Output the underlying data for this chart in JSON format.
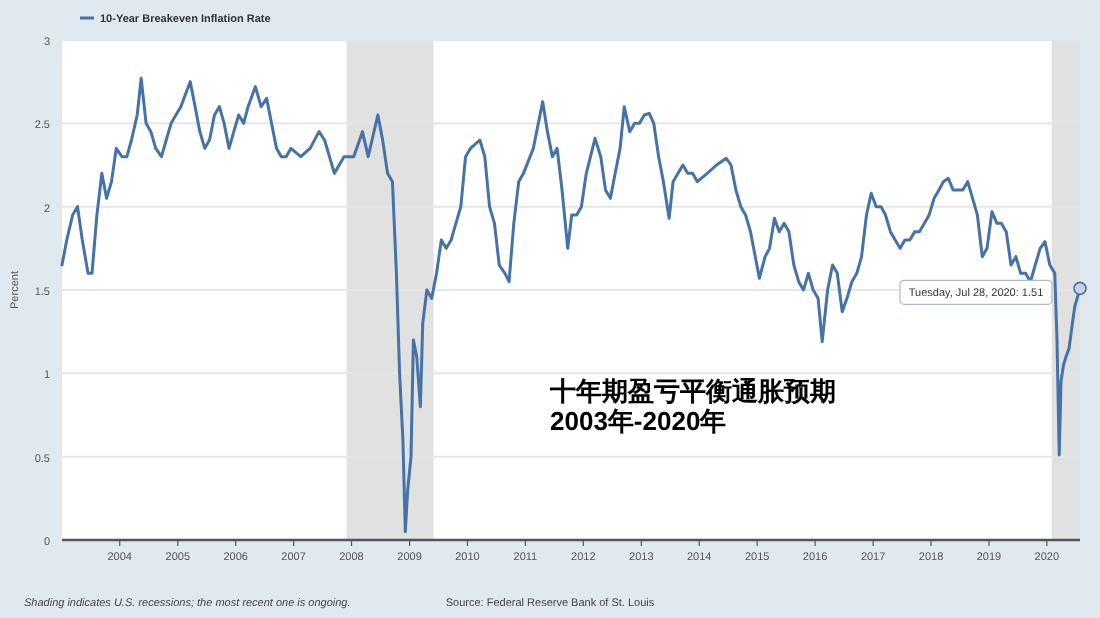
{
  "chart_data": {
    "type": "line",
    "title": "十年期盈亏平衡通胀预期\n2003年-2020年",
    "ylabel": "Percent",
    "legend": "top left",
    "grid": "y",
    "xlim": [
      "2003-01-02",
      "2020-07-28"
    ],
    "ylim": [
      0,
      3
    ],
    "yticks": [
      0,
      0.5,
      1,
      1.5,
      2,
      2.5,
      3
    ],
    "xticks": [
      {
        "value": "2004",
        "label": "2004"
      },
      {
        "value": "2005",
        "label": "2005"
      },
      {
        "value": "2006",
        "label": "2006"
      },
      {
        "value": "2007",
        "label": "2007"
      },
      {
        "value": "2008",
        "label": "2008"
      },
      {
        "value": "2009",
        "label": "2009"
      },
      {
        "value": "2010",
        "label": "2010"
      },
      {
        "value": "2011",
        "label": "2011"
      },
      {
        "value": "2012",
        "label": "2012"
      },
      {
        "value": "2013",
        "label": "2013"
      },
      {
        "value": "2014",
        "label": "2014"
      },
      {
        "value": "2015",
        "label": "2015"
      },
      {
        "value": "2016",
        "label": "2016"
      },
      {
        "value": "2017",
        "label": "2017"
      },
      {
        "value": "2018",
        "label": "2018"
      },
      {
        "value": "2019",
        "label": "2019"
      },
      {
        "value": "2020",
        "label": "2020"
      }
    ],
    "bands": [
      {
        "axis": "x",
        "from": "2007-12-01",
        "to": "2009-06-01",
        "color": "#e1e1e1"
      },
      {
        "axis": "x",
        "from": "2020-02-01",
        "to": "2020-07-28",
        "color": "#e1e1e1"
      }
    ],
    "annotations": [
      "Shading indicates U.S. recessions; the most recent one is ongoing.",
      "Source: Federal Reserve Bank of St. Louis",
      "Tuesday, Jul 28, 2020: 1.51"
    ],
    "series": [
      {
        "name": "10-Year Breakeven Inflation Rate",
        "color": "#4572a7",
        "x": [
          "2003-01-02",
          "2003-02-01",
          "2003-03-10",
          "2003-04-10",
          "2003-05-10",
          "2003-06-15",
          "2003-07-10",
          "2003-08-10",
          "2003-09-10",
          "2003-10-10",
          "2003-11-10",
          "2003-12-10",
          "2004-01-15",
          "2004-02-15",
          "2004-03-15",
          "2004-04-20",
          "2004-05-15",
          "2004-06-15",
          "2004-07-15",
          "2004-08-15",
          "2004-09-20",
          "2004-10-20",
          "2004-11-20",
          "2004-12-20",
          "2005-01-20",
          "2005-03-20",
          "2005-04-20",
          "2005-05-20",
          "2005-06-20",
          "2005-07-20",
          "2005-08-20",
          "2005-09-20",
          "2005-10-20",
          "2005-11-20",
          "2005-12-20",
          "2006-01-20",
          "2006-02-20",
          "2006-03-20",
          "2006-05-05",
          "2006-06-10",
          "2006-07-15",
          "2006-08-15",
          "2006-09-15",
          "2006-10-15",
          "2006-11-15",
          "2006-12-15",
          "2007-02-15",
          "2007-04-15",
          "2007-06-10",
          "2007-07-15",
          "2007-08-15",
          "2007-09-15",
          "2007-11-15",
          "2008-01-15",
          "2008-03-10",
          "2008-04-15",
          "2008-06-15",
          "2008-07-15",
          "2008-08-15",
          "2008-09-15",
          "2008-10-10",
          "2008-10-30",
          "2008-11-20",
          "2008-12-05",
          "2008-12-20",
          "2009-01-10",
          "2009-01-25",
          "2009-02-15",
          "2009-03-10",
          "2009-03-25",
          "2009-04-20",
          "2009-05-20",
          "2009-06-20",
          "2009-07-20",
          "2009-08-20",
          "2009-09-20",
          "2009-10-20",
          "2009-11-20",
          "2009-12-20",
          "2010-01-20",
          "2010-03-20",
          "2010-04-20",
          "2010-05-20",
          "2010-06-20",
          "2010-07-20",
          "2010-08-25",
          "2010-09-20",
          "2010-10-20",
          "2010-11-20",
          "2010-12-20",
          "2011-02-20",
          "2011-04-20",
          "2011-05-20",
          "2011-06-20",
          "2011-07-20",
          "2011-08-20",
          "2011-09-25",
          "2011-10-20",
          "2011-11-20",
          "2011-12-20",
          "2012-01-20",
          "2012-03-15",
          "2012-04-20",
          "2012-05-20",
          "2012-06-20",
          "2012-07-20",
          "2012-08-20",
          "2012-09-15",
          "2012-10-20",
          "2012-11-20",
          "2012-12-20",
          "2013-01-20",
          "2013-02-20",
          "2013-03-20",
          "2013-04-20",
          "2013-05-20",
          "2013-06-25",
          "2013-07-20",
          "2013-08-20",
          "2013-09-20",
          "2013-10-20",
          "2013-11-20",
          "2013-12-20",
          "2014-02-20",
          "2014-04-20",
          "2014-06-20",
          "2014-07-20",
          "2014-08-20",
          "2014-09-20",
          "2014-10-20",
          "2014-11-20",
          "2015-01-15",
          "2015-02-20",
          "2015-03-20",
          "2015-04-20",
          "2015-05-20",
          "2015-06-20",
          "2015-07-20",
          "2015-08-20",
          "2015-09-20",
          "2015-10-20",
          "2015-11-20",
          "2015-12-20",
          "2016-01-20",
          "2016-02-15",
          "2016-03-20",
          "2016-04-20",
          "2016-05-20",
          "2016-06-20",
          "2016-07-20",
          "2016-08-20",
          "2016-09-20",
          "2016-10-20",
          "2016-11-20",
          "2016-12-20",
          "2017-01-20",
          "2017-02-20",
          "2017-03-20",
          "2017-04-20",
          "2017-05-20",
          "2017-06-20",
          "2017-07-20",
          "2017-08-20",
          "2017-09-20",
          "2017-10-20",
          "2017-11-20",
          "2017-12-20",
          "2018-01-20",
          "2018-02-20",
          "2018-03-20",
          "2018-04-20",
          "2018-05-20",
          "2018-06-20",
          "2018-07-20",
          "2018-08-20",
          "2018-09-20",
          "2018-10-20",
          "2018-11-20",
          "2018-12-20",
          "2019-01-20",
          "2019-02-20",
          "2019-03-20",
          "2019-04-20",
          "2019-05-20",
          "2019-06-20",
          "2019-07-20",
          "2019-08-20",
          "2019-09-20",
          "2019-10-20",
          "2019-11-20",
          "2019-12-20",
          "2020-01-20",
          "2020-02-20",
          "2020-03-05",
          "2020-03-19",
          "2020-03-30",
          "2020-04-15",
          "2020-05-01",
          "2020-05-20",
          "2020-06-10",
          "2020-06-25",
          "2020-07-10",
          "2020-07-28"
        ],
        "values": [
          1.65,
          1.8,
          1.95,
          2.0,
          1.8,
          1.6,
          1.6,
          1.95,
          2.2,
          2.05,
          2.15,
          2.35,
          2.3,
          2.3,
          2.4,
          2.55,
          2.77,
          2.5,
          2.45,
          2.35,
          2.3,
          2.4,
          2.5,
          2.55,
          2.6,
          2.75,
          2.6,
          2.45,
          2.35,
          2.4,
          2.55,
          2.6,
          2.5,
          2.35,
          2.45,
          2.55,
          2.5,
          2.6,
          2.72,
          2.6,
          2.65,
          2.5,
          2.35,
          2.3,
          2.3,
          2.35,
          2.3,
          2.35,
          2.45,
          2.4,
          2.3,
          2.2,
          2.3,
          2.3,
          2.45,
          2.3,
          2.55,
          2.4,
          2.2,
          2.15,
          1.6,
          1.0,
          0.6,
          0.05,
          0.3,
          0.5,
          1.2,
          1.1,
          0.8,
          1.3,
          1.5,
          1.45,
          1.6,
          1.8,
          1.75,
          1.8,
          1.9,
          2.0,
          2.3,
          2.35,
          2.4,
          2.3,
          2.0,
          1.9,
          1.65,
          1.6,
          1.55,
          1.9,
          2.15,
          2.2,
          2.35,
          2.63,
          2.45,
          2.3,
          2.35,
          2.1,
          1.75,
          1.95,
          1.95,
          2.0,
          2.2,
          2.41,
          2.3,
          2.1,
          2.05,
          2.2,
          2.35,
          2.6,
          2.45,
          2.5,
          2.5,
          2.55,
          2.56,
          2.5,
          2.3,
          2.15,
          1.93,
          2.15,
          2.2,
          2.25,
          2.2,
          2.2,
          2.15,
          2.2,
          2.25,
          2.29,
          2.25,
          2.1,
          2.0,
          1.95,
          1.85,
          1.57,
          1.7,
          1.75,
          1.93,
          1.85,
          1.9,
          1.85,
          1.65,
          1.55,
          1.5,
          1.6,
          1.5,
          1.45,
          1.19,
          1.5,
          1.65,
          1.6,
          1.37,
          1.45,
          1.55,
          1.6,
          1.7,
          1.95,
          2.08,
          2.0,
          2.0,
          1.95,
          1.85,
          1.8,
          1.75,
          1.8,
          1.8,
          1.85,
          1.85,
          1.9,
          1.95,
          2.05,
          2.1,
          2.15,
          2.17,
          2.1,
          2.1,
          2.1,
          2.15,
          2.05,
          1.95,
          1.7,
          1.75,
          1.97,
          1.9,
          1.9,
          1.85,
          1.65,
          1.7,
          1.6,
          1.6,
          1.55,
          1.65,
          1.75,
          1.79,
          1.65,
          1.6,
          1.2,
          0.51,
          0.95,
          1.05,
          1.1,
          1.15,
          1.3,
          1.4,
          1.45,
          1.51
        ]
      }
    ]
  }
}
